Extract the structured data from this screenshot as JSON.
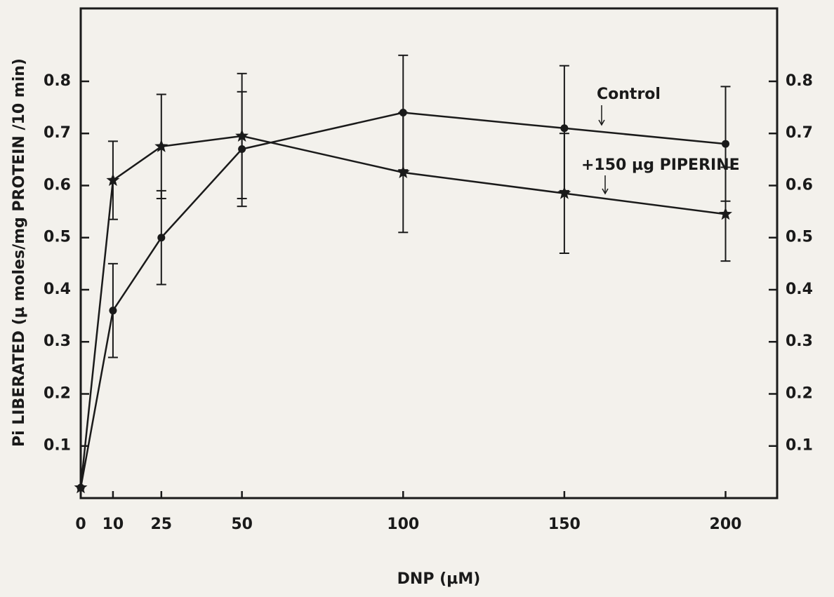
{
  "chart_data": {
    "type": "line",
    "y_label": "Pi LIBERATED (µ moles/mg PROTEIN /10 min)",
    "x_label": "DNP (µM)",
    "x": [
      0,
      10,
      25,
      50,
      100,
      150,
      200
    ],
    "xlim": [
      0,
      216
    ],
    "xticks": [
      0,
      10,
      25,
      50,
      100,
      150,
      200
    ],
    "ylim": [
      0,
      0.94
    ],
    "yticks": [
      0.1,
      0.2,
      0.3,
      0.4,
      0.5,
      0.6,
      0.7,
      0.8
    ],
    "y2lim": [
      0,
      0.94
    ],
    "y2ticks": [
      0.1,
      0.2,
      0.3,
      0.4,
      0.5,
      0.6,
      0.7,
      0.8
    ],
    "series": [
      {
        "name": "Control",
        "color": "#1a1a1a",
        "marker": "circle",
        "values": [
          0.02,
          0.36,
          0.5,
          0.67,
          0.74,
          0.71,
          0.68
        ],
        "errors": [
          null,
          0.09,
          0.09,
          0.11,
          0.11,
          0.12,
          0.11
        ]
      },
      {
        "name": "+150 µg PIPERINE",
        "color": "#1a1a1a",
        "marker": "star",
        "values": [
          0.02,
          0.61,
          0.675,
          0.695,
          0.625,
          0.585,
          0.545
        ],
        "errors": [
          null,
          0.075,
          0.1,
          0.12,
          0.115,
          0.115,
          0.09
        ]
      }
    ]
  }
}
